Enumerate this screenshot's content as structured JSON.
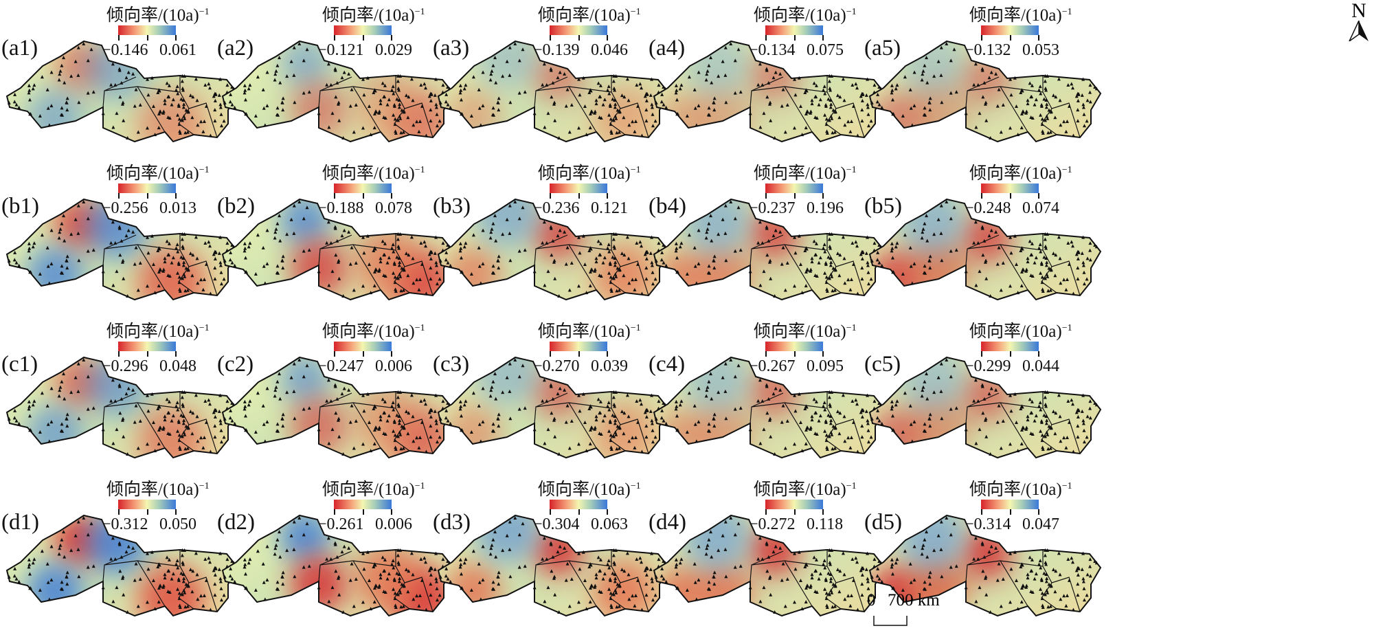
{
  "colorbar_title": "倾向率/(10a)",
  "colorbar_title_exp": "−1",
  "colors": {
    "low": "#d7242a",
    "mid": "#f4f6b0",
    "high": "#3a78d8"
  },
  "panels": [
    {
      "label": "(a1)",
      "min": "−0.146",
      "max": "0.061"
    },
    {
      "label": "(a2)",
      "min": "−0.121",
      "max": "0.029"
    },
    {
      "label": "(a3)",
      "min": "−0.139",
      "max": "0.046"
    },
    {
      "label": "(a4)",
      "min": "−0.134",
      "max": "0.075"
    },
    {
      "label": "(a5)",
      "min": "−0.132",
      "max": "0.053"
    },
    {
      "label": "(b1)",
      "min": "−0.256",
      "max": "0.013"
    },
    {
      "label": "(b2)",
      "min": "−0.188",
      "max": "0.078"
    },
    {
      "label": "(b3)",
      "min": "−0.236",
      "max": "0.121"
    },
    {
      "label": "(b4)",
      "min": "−0.237",
      "max": "0.196"
    },
    {
      "label": "(b5)",
      "min": "−0.248",
      "max": "0.074"
    },
    {
      "label": "(c1)",
      "min": "−0.296",
      "max": "0.048"
    },
    {
      "label": "(c2)",
      "min": "−0.247",
      "max": "0.006"
    },
    {
      "label": "(c3)",
      "min": "−0.270",
      "max": "0.039"
    },
    {
      "label": "(c4)",
      "min": "−0.267",
      "max": "0.095"
    },
    {
      "label": "(c5)",
      "min": "−0.299",
      "max": "0.044"
    },
    {
      "label": "(d1)",
      "min": "−0.312",
      "max": "0.050"
    },
    {
      "label": "(d2)",
      "min": "−0.261",
      "max": "0.006"
    },
    {
      "label": "(d3)",
      "min": "−0.304",
      "max": "0.063"
    },
    {
      "label": "(d4)",
      "min": "−0.272",
      "max": "0.118"
    },
    {
      "label": "(d5)",
      "min": "−0.314",
      "max": "0.047"
    }
  ],
  "north_label": "N",
  "scale": {
    "start": "0",
    "end": "700 km"
  }
}
